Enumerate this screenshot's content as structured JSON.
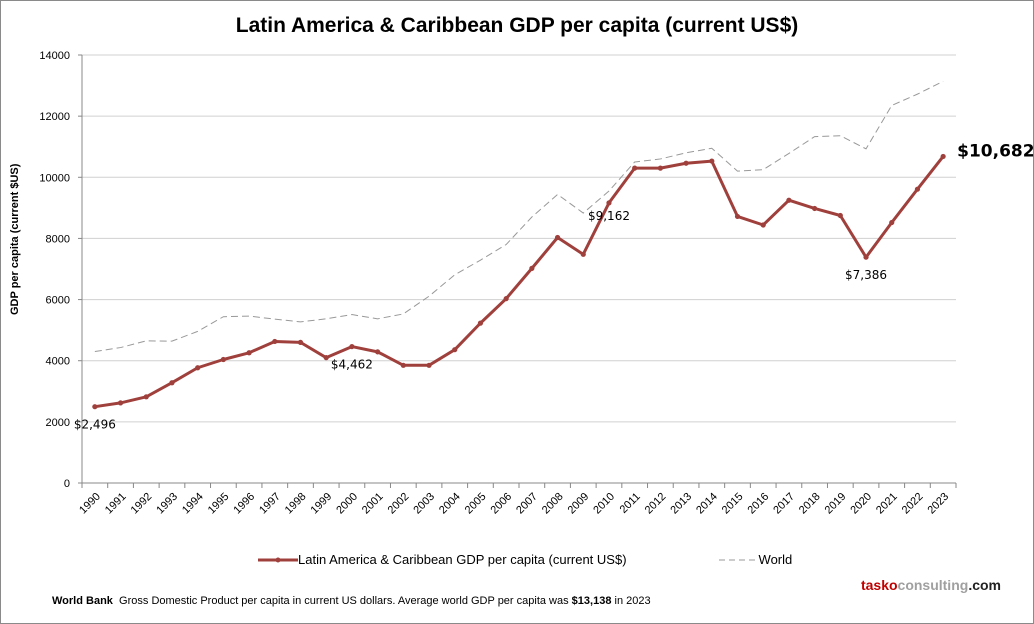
{
  "chart_data": {
    "type": "line",
    "title": "Latin America & Caribbean GDP per capita (current US$)",
    "xlabel": "",
    "ylabel": "GDP per capita (current $US)",
    "ylim": [
      0,
      14000
    ],
    "yticks": [
      0,
      2000,
      4000,
      6000,
      8000,
      10000,
      12000,
      14000
    ],
    "grid": true,
    "legend": "bottom",
    "categories": [
      "1990",
      "1991",
      "1992",
      "1993",
      "1994",
      "1995",
      "1996",
      "1997",
      "1998",
      "1999",
      "2000",
      "2001",
      "2002",
      "2003",
      "2004",
      "2005",
      "2006",
      "2007",
      "2008",
      "2009",
      "2010",
      "2011",
      "2012",
      "2013",
      "2014",
      "2015",
      "2016",
      "2017",
      "2018",
      "2019",
      "2020",
      "2021",
      "2022",
      "2023"
    ],
    "series": [
      {
        "name": "Latin America & Caribbean GDP per capita (current US$)",
        "color": "#a0403c",
        "style": "solid-markers",
        "values": [
          2496,
          2620,
          2820,
          3280,
          3770,
          4040,
          4260,
          4630,
          4600,
          4100,
          4462,
          4290,
          3850,
          3850,
          4360,
          5230,
          6030,
          7020,
          8030,
          7480,
          9162,
          10300,
          10300,
          10460,
          10530,
          8720,
          8440,
          9250,
          8980,
          8750,
          7386,
          8520,
          9610,
          10682
        ]
      },
      {
        "name": "World",
        "color": "#999999",
        "style": "dashed",
        "values": [
          4300,
          4430,
          4650,
          4640,
          4960,
          5440,
          5460,
          5360,
          5270,
          5370,
          5510,
          5370,
          5530,
          6110,
          6810,
          7290,
          7800,
          8700,
          9440,
          8830,
          9550,
          10500,
          10600,
          10800,
          10950,
          10200,
          10250,
          10780,
          11330,
          11360,
          10930,
          12350,
          12720,
          13138
        ]
      }
    ],
    "annotations": [
      {
        "year": "1990",
        "text": "$2,496"
      },
      {
        "year": "2000",
        "text": "$4,462"
      },
      {
        "year": "2010",
        "text": "$9,162"
      },
      {
        "year": "2020",
        "text": "$7,386"
      },
      {
        "year": "2023",
        "text": "$10,682"
      }
    ]
  },
  "footer": {
    "source": "World Bank",
    "note": "Gross Domestic Product per capita in current US dollars.  Average world GDP per capita was ",
    "value": "$13,138",
    "suffix": " in 2023"
  },
  "brand": {
    "part1": "tasko",
    "part2": "consulting",
    "part3": ".com",
    "color1": "#c00000",
    "color2": "#a0a0a0"
  }
}
